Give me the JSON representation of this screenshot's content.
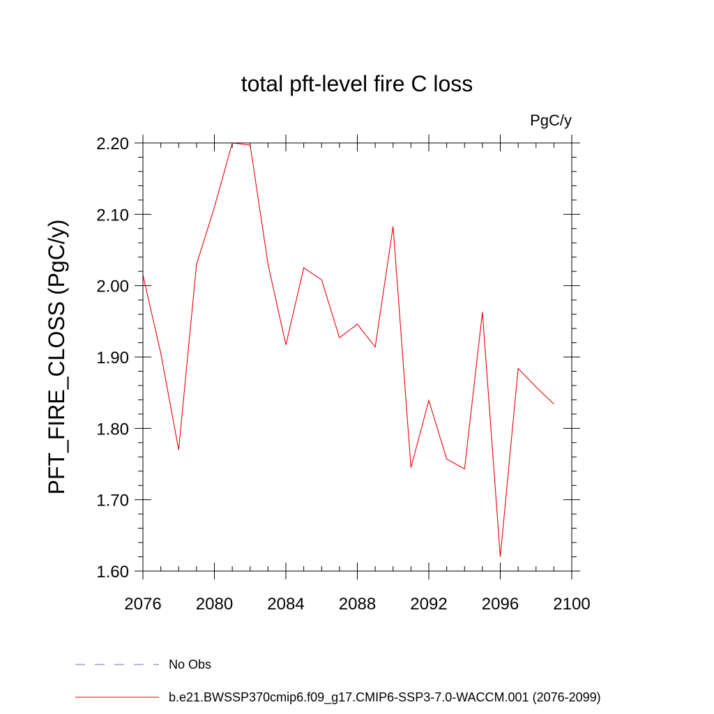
{
  "chart_data": {
    "type": "line",
    "title": "total pft-level fire C loss",
    "units_label": "PgC/y",
    "xlabel": "",
    "ylabel": "PFT_FIRE_CLOSS  (PgC/y)",
    "xlim": [
      2076,
      2100
    ],
    "ylim": [
      1.6,
      2.2
    ],
    "x_ticks": [
      2076,
      2080,
      2084,
      2088,
      2092,
      2096,
      2100
    ],
    "y_ticks": [
      1.6,
      1.7,
      1.8,
      1.9,
      2.0,
      2.1,
      2.2
    ],
    "x_tick_labels": [
      "2076",
      "2080",
      "2084",
      "2088",
      "2092",
      "2096",
      "2100"
    ],
    "y_tick_labels": [
      "1.60",
      "1.70",
      "1.80",
      "1.90",
      "2.00",
      "2.10",
      "2.20"
    ],
    "series": [
      {
        "name": "b.e21.BWSSP370cmip6.f09_g17.CMIP6-SSP3-7.0-WACCM.001 (2076-2099)",
        "color": "#e8000b",
        "x": [
          2076,
          2077,
          2078,
          2079,
          2080,
          2081,
          2082,
          2083,
          2084,
          2085,
          2086,
          2087,
          2088,
          2089,
          2090,
          2091,
          2092,
          2093,
          2094,
          2095,
          2096,
          2097,
          2098,
          2099
        ],
        "values": [
          2.015,
          1.905,
          1.77,
          2.03,
          2.11,
          2.2,
          2.197,
          2.03,
          1.917,
          2.025,
          2.008,
          1.927,
          1.946,
          1.914,
          2.083,
          1.745,
          1.839,
          1.757,
          1.743,
          1.963,
          1.62,
          1.884,
          1.858,
          1.834
        ]
      }
    ],
    "legend": [
      {
        "label": "No Obs",
        "style": "dashed",
        "color": "#7a6fc4"
      },
      {
        "label": "b.e21.BWSSP370cmip6.f09_g17.CMIP6-SSP3-7.0-WACCM.001 (2076-2099)",
        "style": "solid",
        "color": "#e8000b"
      }
    ]
  }
}
